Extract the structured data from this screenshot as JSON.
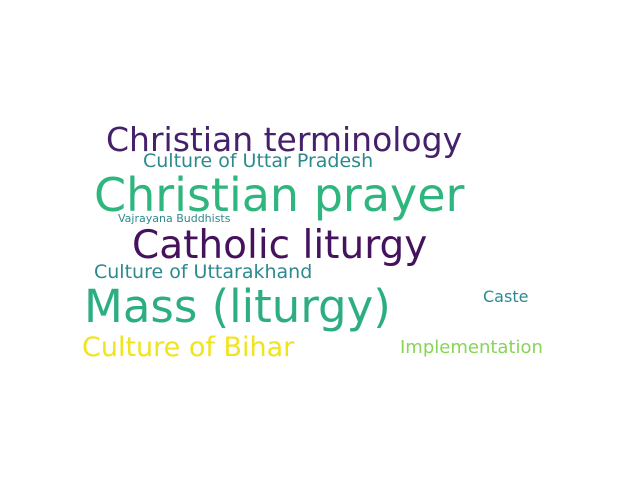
{
  "word_cloud": {
    "words": [
      {
        "id": "christian-terminology",
        "text": "Christian terminology",
        "color": "#46216b"
      },
      {
        "id": "culture-of-uttar-pradesh",
        "text": "Culture of Uttar Pradesh",
        "color": "#2a8a8d"
      },
      {
        "id": "christian-prayer",
        "text": "Christian prayer",
        "color": "#2fb57e"
      },
      {
        "id": "vajrayana-buddhists",
        "text": "Vajrayana Buddhists",
        "color": "#2d8a8d"
      },
      {
        "id": "catholic-liturgy",
        "text": "Catholic liturgy",
        "color": "#45125c"
      },
      {
        "id": "culture-of-uttarakhand",
        "text": "Culture of Uttarakhand",
        "color": "#2b8a8f"
      },
      {
        "id": "mass-liturgy",
        "text": "Mass (liturgy)",
        "color": "#2dae82"
      },
      {
        "id": "caste",
        "text": "Caste",
        "color": "#2b8a8f"
      },
      {
        "id": "culture-of-bihar",
        "text": "Culture of Bihar",
        "color": "#f1e31d"
      },
      {
        "id": "implementation",
        "text": "Implementation",
        "color": "#87d457"
      }
    ]
  }
}
